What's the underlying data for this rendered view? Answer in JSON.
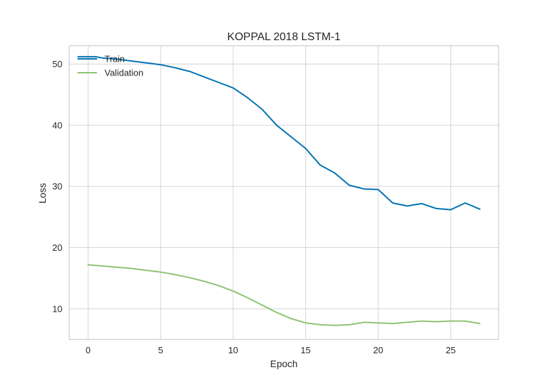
{
  "chart_data": {
    "type": "line",
    "title": "KOPPAL 2018 LSTM-1",
    "xlabel": "Epoch",
    "ylabel": "Loss",
    "xlim": [
      -1.3,
      28.3
    ],
    "ylim": [
      5,
      53
    ],
    "xticks": [
      0,
      5,
      10,
      15,
      20,
      25
    ],
    "yticks": [
      10,
      20,
      30,
      40,
      50
    ],
    "grid": true,
    "legend_position": "top-left",
    "series": [
      {
        "name": "Train",
        "color": "#0072b2",
        "x": [
          -0.7,
          0,
          0.5,
          1,
          2,
          3,
          4,
          5,
          6,
          7,
          8,
          9,
          10,
          11,
          12,
          13,
          14,
          15,
          16,
          17,
          18,
          19,
          20,
          21,
          22,
          23,
          24,
          25,
          26,
          27
        ],
        "values": [
          51.2,
          51.2,
          51.2,
          51.0,
          50.8,
          50.5,
          50.2,
          49.9,
          49.4,
          48.8,
          47.9,
          47.0,
          46.1,
          44.5,
          42.6,
          40.0,
          38.1,
          36.2,
          33.5,
          32.2,
          30.2,
          29.6,
          29.5,
          27.3,
          26.8,
          27.2,
          26.4,
          26.2,
          27.3,
          26.3
        ]
      },
      {
        "name": "Validation",
        "color": "#8ec26f",
        "x": [
          0,
          1,
          2,
          3,
          4,
          5,
          6,
          7,
          8,
          9,
          10,
          11,
          12,
          13,
          14,
          15,
          16,
          17,
          18,
          19,
          20,
          21,
          22,
          23,
          24,
          25,
          26,
          27
        ],
        "values": [
          17.2,
          17.0,
          16.8,
          16.6,
          16.3,
          16.0,
          15.6,
          15.1,
          14.5,
          13.8,
          12.9,
          11.8,
          10.6,
          9.4,
          8.4,
          7.7,
          7.4,
          7.3,
          7.4,
          7.8,
          7.7,
          7.6,
          7.8,
          8.0,
          7.9,
          8.0,
          8.0,
          7.6
        ]
      }
    ]
  }
}
